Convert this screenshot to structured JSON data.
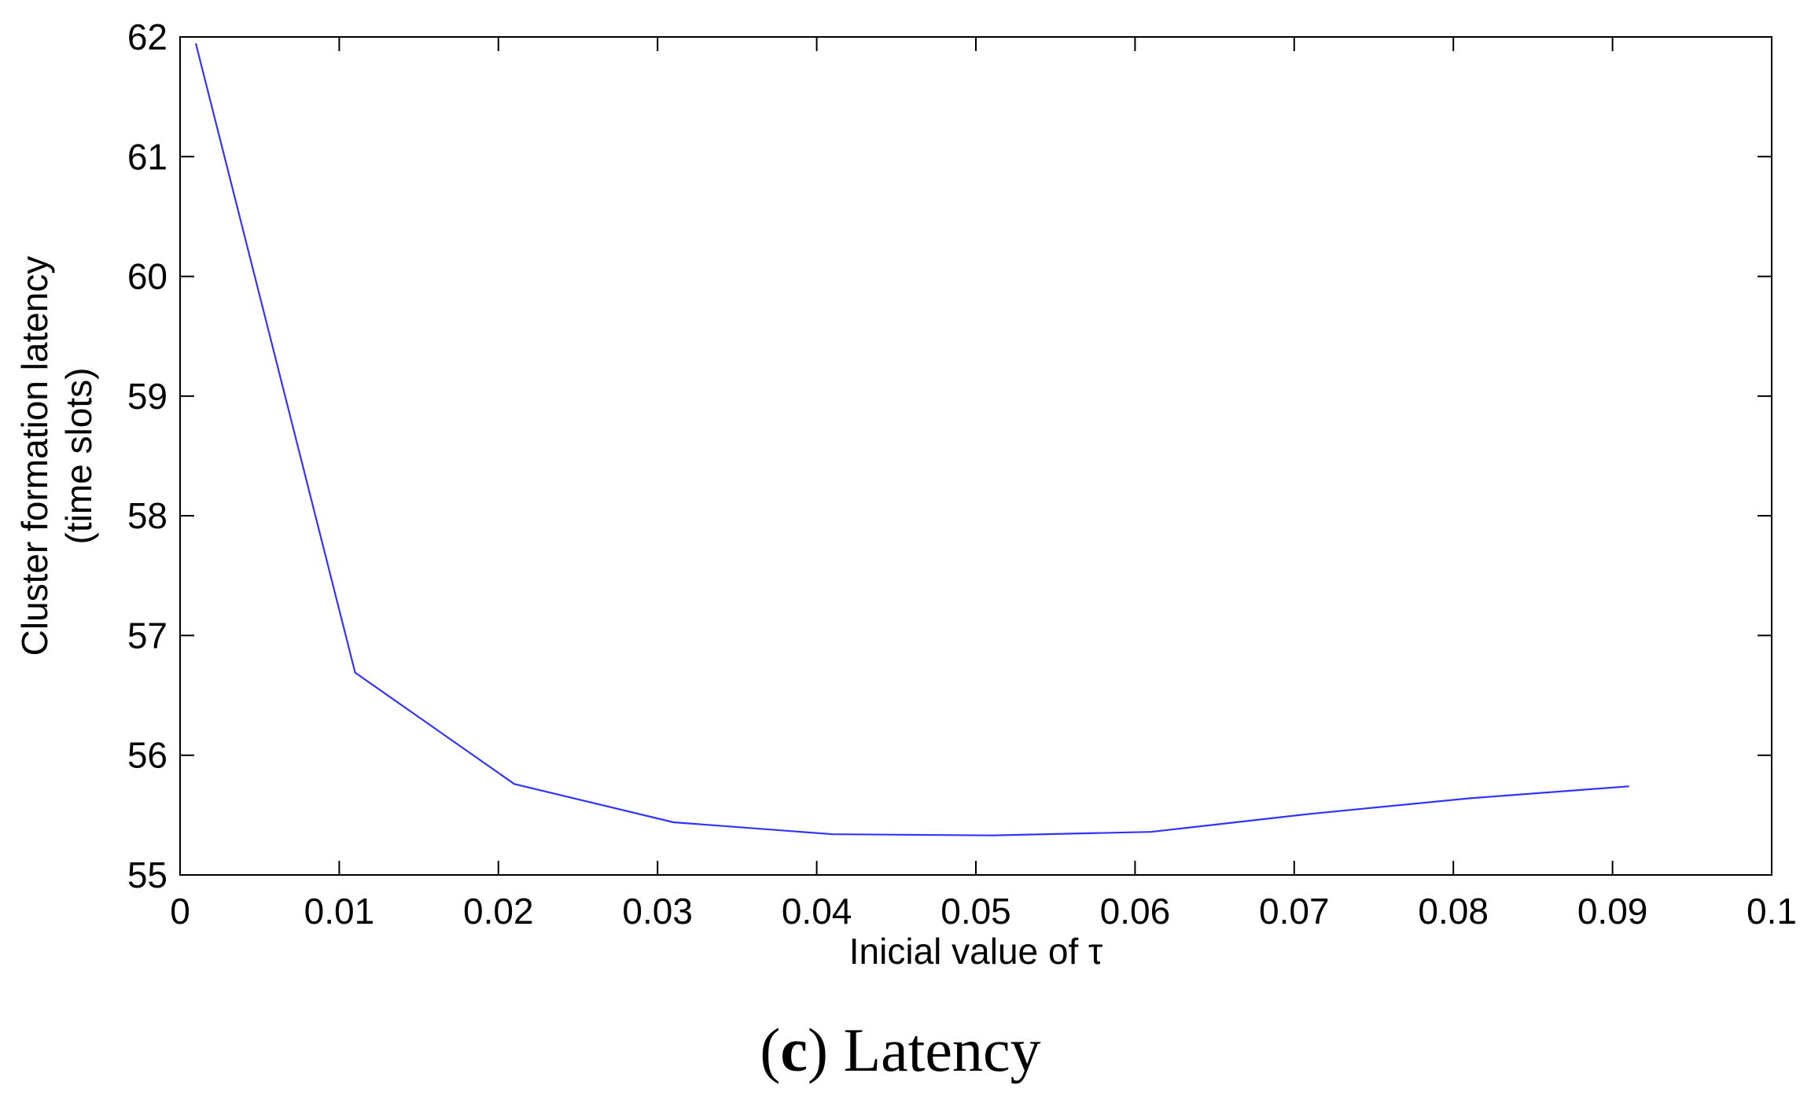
{
  "chart_data": {
    "type": "line",
    "title": "",
    "xlabel_prefix": "Inicial value of ",
    "xlabel_symbol": "τ",
    "ylabel_line1": "Cluster formation latency",
    "ylabel_line2": "(time slots)",
    "xlim": [
      0,
      0.1
    ],
    "ylim": [
      55,
      62
    ],
    "xticks": [
      0,
      0.01,
      0.02,
      0.03,
      0.04,
      0.05,
      0.06,
      0.07,
      0.08,
      0.09,
      0.1
    ],
    "xtick_labels": [
      "0",
      "0.01",
      "0.02",
      "0.03",
      "0.04",
      "0.05",
      "0.06",
      "0.07",
      "0.08",
      "0.09",
      "0.1"
    ],
    "yticks": [
      55,
      56,
      57,
      58,
      59,
      60,
      61,
      62
    ],
    "ytick_labels": [
      "55",
      "56",
      "57",
      "58",
      "59",
      "60",
      "61",
      "62"
    ],
    "grid": false,
    "series": [
      {
        "color": "#3333ff",
        "x": [
          0.001,
          0.011,
          0.021,
          0.031,
          0.041,
          0.051,
          0.061,
          0.071,
          0.081,
          0.091
        ],
        "y": [
          61.94,
          56.69,
          55.76,
          55.44,
          55.34,
          55.33,
          55.36,
          55.51,
          55.64,
          55.74
        ]
      }
    ]
  },
  "caption": {
    "open_paren": "(",
    "letter": "c",
    "close_paren": ")",
    "text": " Latency"
  }
}
